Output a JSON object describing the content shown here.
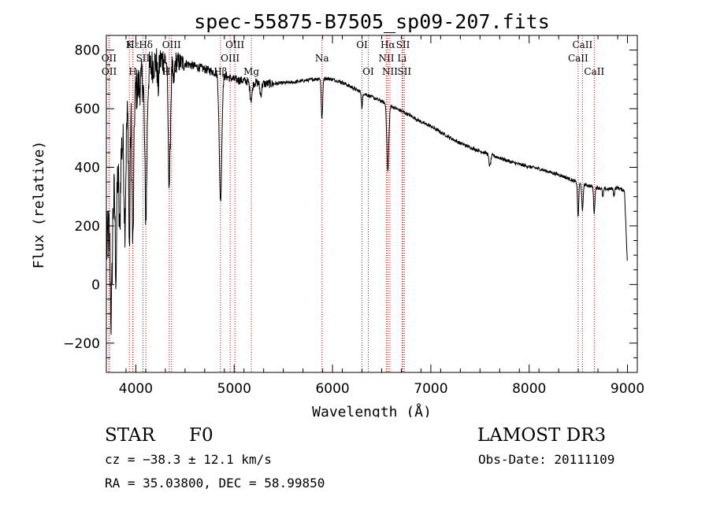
{
  "chart_data": {
    "type": "line",
    "title": "spec-55875-B7505_sp09-207.fits",
    "xlabel": "Wavelength (Å)",
    "ylabel": "Flux (relative)",
    "xlim": [
      3700,
      9100
    ],
    "ylim": [
      -300,
      850
    ],
    "x_ticks": [
      4000,
      5000,
      6000,
      7000,
      8000,
      9000
    ],
    "x_tick_labels": [
      "4000",
      "5000",
      "6000",
      "7000",
      "8000",
      "9000"
    ],
    "y_ticks": [
      -200,
      0,
      200,
      400,
      600,
      800
    ],
    "y_tick_labels": [
      "−200",
      "0",
      "200",
      "400",
      "600",
      "800"
    ],
    "grid": false,
    "series": [
      {
        "name": "flux",
        "continuum": {
          "x": [
            3700,
            3800,
            3900,
            4000,
            4100,
            4200,
            4300,
            4400,
            4500,
            4600,
            4700,
            4800,
            4900,
            5000,
            5100,
            5200,
            5300,
            5400,
            5500,
            5600,
            5700,
            5800,
            5900,
            6000,
            6100,
            6200,
            6300,
            6400,
            6500,
            6600,
            6700,
            6800,
            6900,
            7000,
            7100,
            7200,
            7300,
            7400,
            7500,
            7600,
            7700,
            7800,
            7900,
            8000,
            8100,
            8200,
            8300,
            8400,
            8500,
            8600,
            8700,
            8800,
            8900,
            8970,
            9000
          ],
          "y": [
            120,
            350,
            560,
            660,
            720,
            760,
            770,
            760,
            755,
            745,
            735,
            725,
            712,
            700,
            695,
            690,
            685,
            685,
            688,
            690,
            695,
            700,
            705,
            700,
            690,
            672,
            655,
            640,
            625,
            608,
            592,
            575,
            555,
            540,
            520,
            500,
            482,
            468,
            455,
            445,
            432,
            420,
            410,
            402,
            395,
            385,
            375,
            362,
            345,
            338,
            330,
            325,
            330,
            320,
            60
          ]
        },
        "absorption_features": [
          {
            "x": 3750,
            "depth": 350,
            "width": 12
          },
          {
            "x": 3798,
            "depth": 300,
            "width": 10
          },
          {
            "x": 3835,
            "depth": 250,
            "width": 10
          },
          {
            "x": 3889,
            "depth": 320,
            "width": 12
          },
          {
            "x": 3934,
            "depth": 480,
            "width": 9
          },
          {
            "x": 3970,
            "depth": 500,
            "width": 12
          },
          {
            "x": 4102,
            "depth": 480,
            "width": 16
          },
          {
            "x": 4227,
            "depth": 90,
            "width": 10
          },
          {
            "x": 4340,
            "depth": 420,
            "width": 16
          },
          {
            "x": 4384,
            "depth": 80,
            "width": 10
          },
          {
            "x": 4861,
            "depth": 430,
            "width": 18
          },
          {
            "x": 5172,
            "depth": 60,
            "width": 16
          },
          {
            "x": 5270,
            "depth": 40,
            "width": 12
          },
          {
            "x": 5893,
            "depth": 140,
            "width": 10
          },
          {
            "x": 6300,
            "depth": 55,
            "width": 8
          },
          {
            "x": 6563,
            "depth": 230,
            "width": 14
          },
          {
            "x": 7600,
            "depth": 40,
            "width": 14
          },
          {
            "x": 8498,
            "depth": 120,
            "width": 8
          },
          {
            "x": 8542,
            "depth": 95,
            "width": 9
          },
          {
            "x": 8662,
            "depth": 90,
            "width": 9
          },
          {
            "x": 8750,
            "depth": 30,
            "width": 8
          },
          {
            "x": 8863,
            "depth": 25,
            "width": 8
          }
        ]
      }
    ],
    "line_markers": [
      {
        "label": "Hε",
        "x": 3970,
        "tier": 1
      },
      {
        "label": "OII",
        "x": 3727,
        "tier": 2
      },
      {
        "label": "OII",
        "x": 3729,
        "tier": 3
      },
      {
        "label": "K",
        "x": 3934,
        "tier": 1
      },
      {
        "label": "H",
        "x": 3969,
        "tier": 3
      },
      {
        "label": "Hδ",
        "x": 4102,
        "tier": 1
      },
      {
        "label": "SII",
        "x": 4072,
        "tier": 2
      },
      {
        "label": "Hγ",
        "x": 4340,
        "tier": 3
      },
      {
        "label": "OIII",
        "x": 4363,
        "tier": 1
      },
      {
        "label": "Hβ",
        "x": 4861,
        "tier": 3
      },
      {
        "label": "OIII",
        "x": 4959,
        "tier": 2
      },
      {
        "label": "OIII",
        "x": 5007,
        "tier": 1
      },
      {
        "label": "Mg",
        "x": 5175,
        "tier": 3
      },
      {
        "label": "Na",
        "x": 5893,
        "tier": 2
      },
      {
        "label": "OI",
        "x": 6300,
        "tier": 1
      },
      {
        "label": "OI",
        "x": 6364,
        "tier": 3
      },
      {
        "label": "NII",
        "x": 6548,
        "tier": 2
      },
      {
        "label": "Hα",
        "x": 6563,
        "tier": 1
      },
      {
        "label": "NII",
        "x": 6584,
        "tier": 3
      },
      {
        "label": "SII",
        "x": 6717,
        "tier": 1
      },
      {
        "label": "SII",
        "x": 6731,
        "tier": 3
      },
      {
        "label": "Li",
        "x": 6707,
        "tier": 2
      },
      {
        "label": "CaII",
        "x": 8498,
        "tier": 2
      },
      {
        "label": "CaII",
        "x": 8542,
        "tier": 1
      },
      {
        "label": "CaII",
        "x": 8662,
        "tier": 3
      }
    ],
    "colors": {
      "spectrum": "#000000",
      "markers": "#cc0000",
      "axis": "#000000"
    }
  },
  "info": {
    "object_class": "STAR",
    "subclass": "F0",
    "survey": "LAMOST DR3",
    "redshift": "cz = −38.3 ± 12.1 km/s",
    "obs_date": "Obs-Date: 20111109",
    "coordinates": "RA =  35.03800, DEC =  58.99850"
  }
}
